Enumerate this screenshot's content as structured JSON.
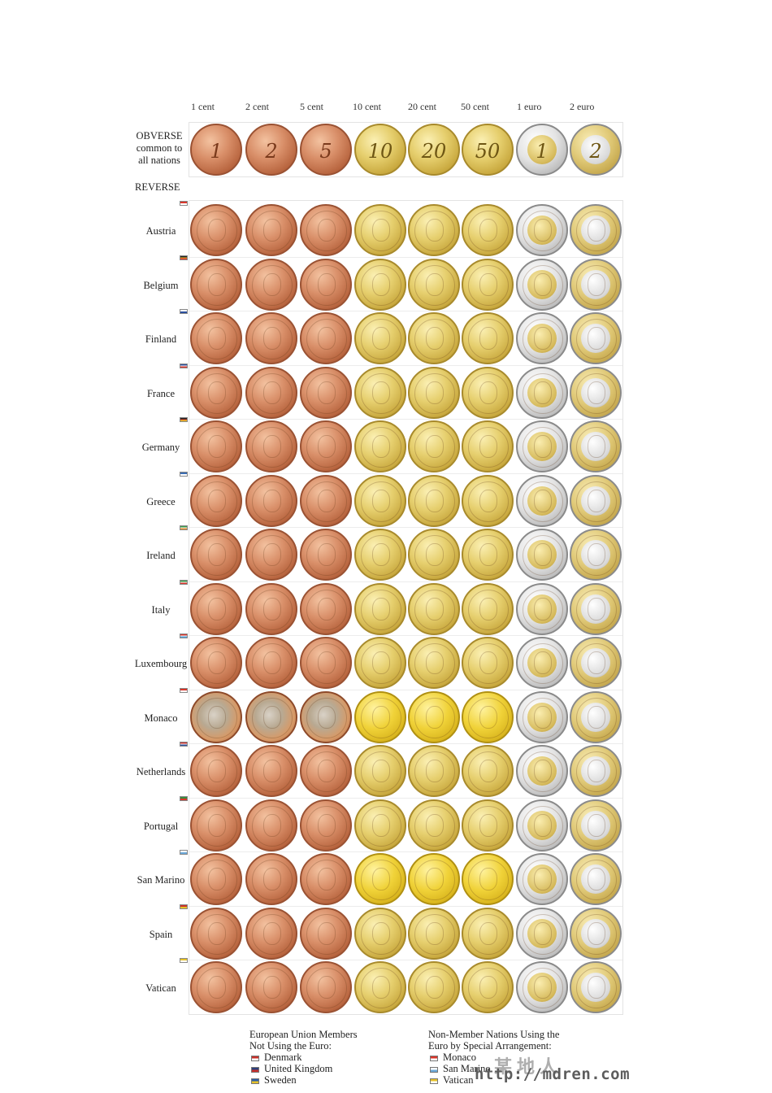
{
  "denominations": [
    "1 cent",
    "2 cent",
    "5 cent",
    "10 cent",
    "20 cent",
    "50 cent",
    "1 euro",
    "2 euro"
  ],
  "obverse": {
    "label_lines": [
      "OBVERSE",
      "common to",
      "all nations"
    ],
    "coin_marks": [
      "1",
      "2",
      "5",
      "10",
      "20",
      "50",
      "1",
      "2"
    ]
  },
  "reverse_label": "REVERSE",
  "countries": [
    {
      "name": "Austria",
      "flag": [
        "#d9362b",
        "#ffffff"
      ],
      "style": "standard"
    },
    {
      "name": "Belgium",
      "flag": [
        "#222222",
        "#e6c12a",
        "#d9362b"
      ],
      "style": "standard"
    },
    {
      "name": "Finland",
      "flag": [
        "#ffffff",
        "#2b4f9c"
      ],
      "style": "standard"
    },
    {
      "name": "France",
      "flag": [
        "#2b4f9c",
        "#ffffff",
        "#d9362b"
      ],
      "style": "standard"
    },
    {
      "name": "Germany",
      "flag": [
        "#222222",
        "#d9362b",
        "#e6c12a"
      ],
      "style": "standard"
    },
    {
      "name": "Greece",
      "flag": [
        "#3b6db3",
        "#ffffff"
      ],
      "style": "standard"
    },
    {
      "name": "Ireland",
      "flag": [
        "#3a9a4a",
        "#ffffff",
        "#e08a2a"
      ],
      "style": "standard"
    },
    {
      "name": "Italy",
      "flag": [
        "#3a9a4a",
        "#ffffff",
        "#d9362b"
      ],
      "style": "standard"
    },
    {
      "name": "Luxembourg",
      "flag": [
        "#d9362b",
        "#ffffff",
        "#4ea1d8"
      ],
      "style": "standard"
    },
    {
      "name": "Monaco",
      "flag": [
        "#d9362b",
        "#ffffff"
      ],
      "style": "monaco"
    },
    {
      "name": "Netherlands",
      "flag": [
        "#c8302b",
        "#ffffff",
        "#2b4f9c"
      ],
      "style": "standard"
    },
    {
      "name": "Portugal",
      "flag": [
        "#3a8a3a",
        "#d9362b"
      ],
      "style": "standard"
    },
    {
      "name": "San Marino",
      "flag": [
        "#ffffff",
        "#6aa7d8"
      ],
      "style": "sanmarino"
    },
    {
      "name": "Spain",
      "flag": [
        "#c8302b",
        "#e6c12a"
      ],
      "style": "standard"
    },
    {
      "name": "Vatican",
      "flag": [
        "#e6c12a",
        "#ffffff"
      ],
      "style": "vatican"
    }
  ],
  "footer": {
    "eu_heading": [
      "European Union Members",
      "Not Using the Euro:"
    ],
    "eu_members": [
      {
        "name": "Denmark",
        "flag": [
          "#c8302b",
          "#ffffff"
        ]
      },
      {
        "name": "United Kingdom",
        "flag": [
          "#2b3f7c",
          "#c8302b"
        ]
      },
      {
        "name": "Sweden",
        "flag": [
          "#2b5fa8",
          "#e6c12a"
        ]
      }
    ],
    "non_member_heading": [
      "Non-Member Nations Using the",
      "Euro by Special Arrangement:"
    ],
    "non_members": [
      {
        "name": "Monaco",
        "flag": [
          "#d9362b",
          "#ffffff"
        ]
      },
      {
        "name": "San Marino",
        "flag": [
          "#ffffff",
          "#6aa7d8"
        ]
      },
      {
        "name": "Vatican",
        "flag": [
          "#e6c12a",
          "#ffffff"
        ]
      }
    ]
  },
  "watermark": {
    "url": "http://mdren.com",
    "text": "某地人"
  }
}
